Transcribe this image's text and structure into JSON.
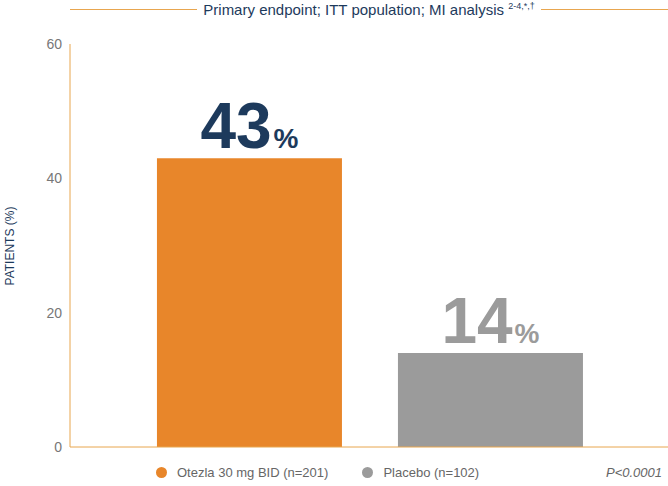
{
  "chart_data": {
    "type": "bar",
    "title": "Primary endpoint; ITT population; MI analysis 2-4,*,†",
    "categories": [
      "Otezla 30 mg BID (n=201)",
      "Placebo (n=102)"
    ],
    "values": [
      43,
      14
    ],
    "value_labels": [
      "43%",
      "14%"
    ],
    "colors": [
      "#e8862a",
      "#9b9b9b"
    ],
    "y_label": "PATIENTS (%)",
    "ylim": [
      0,
      60
    ],
    "yticks": [
      0,
      20,
      40,
      60
    ],
    "grid": false,
    "data_labels": true,
    "tick_labels": "y",
    "legend": "bottom",
    "annotations": [
      "P<0.0001"
    ]
  }
}
